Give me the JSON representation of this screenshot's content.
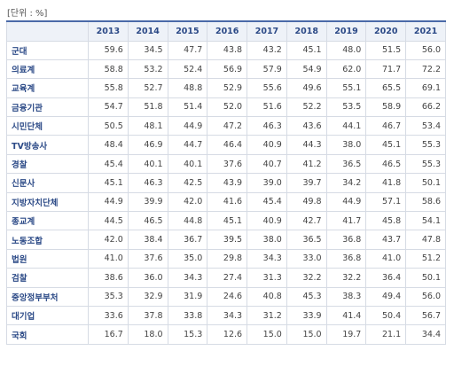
{
  "unit_label": "[단위 : %]",
  "years": [
    "2013",
    "2014",
    "2015",
    "2016",
    "2017",
    "2018",
    "2019",
    "2020",
    "2021"
  ],
  "rows": [
    {
      "name": "군대",
      "values": [
        "59.6",
        "34.5",
        "47.7",
        "43.8",
        "43.2",
        "45.1",
        "48.0",
        "51.5",
        "56.0"
      ]
    },
    {
      "name": "의료계",
      "values": [
        "58.8",
        "53.2",
        "52.4",
        "56.9",
        "57.9",
        "54.9",
        "62.0",
        "71.7",
        "72.2"
      ]
    },
    {
      "name": "교육계",
      "values": [
        "55.8",
        "52.7",
        "48.8",
        "52.9",
        "55.6",
        "49.6",
        "55.1",
        "65.5",
        "69.1"
      ]
    },
    {
      "name": "금융기관",
      "values": [
        "54.7",
        "51.8",
        "51.4",
        "52.0",
        "51.6",
        "52.2",
        "53.5",
        "58.9",
        "66.2"
      ]
    },
    {
      "name": "시민단체",
      "values": [
        "50.5",
        "48.1",
        "44.9",
        "47.2",
        "46.3",
        "43.6",
        "44.1",
        "46.7",
        "53.4"
      ]
    },
    {
      "name": "TV방송사",
      "values": [
        "48.4",
        "46.9",
        "44.7",
        "46.4",
        "40.9",
        "44.3",
        "38.0",
        "45.1",
        "55.3"
      ]
    },
    {
      "name": "경찰",
      "values": [
        "45.4",
        "40.1",
        "40.1",
        "37.6",
        "40.7",
        "41.2",
        "36.5",
        "46.5",
        "55.3"
      ]
    },
    {
      "name": "신문사",
      "values": [
        "45.1",
        "46.3",
        "42.5",
        "43.9",
        "39.0",
        "39.7",
        "34.2",
        "41.8",
        "50.1"
      ]
    },
    {
      "name": "지방자치단체",
      "values": [
        "44.9",
        "39.9",
        "42.0",
        "41.6",
        "45.4",
        "49.8",
        "44.9",
        "57.1",
        "58.6"
      ]
    },
    {
      "name": "종교계",
      "values": [
        "44.5",
        "46.5",
        "44.8",
        "45.1",
        "40.9",
        "42.7",
        "41.7",
        "45.8",
        "54.1"
      ]
    },
    {
      "name": "노동조합",
      "values": [
        "42.0",
        "38.4",
        "36.7",
        "39.5",
        "38.0",
        "36.5",
        "36.8",
        "43.7",
        "47.8"
      ]
    },
    {
      "name": "법원",
      "values": [
        "41.0",
        "37.6",
        "35.0",
        "29.8",
        "34.3",
        "33.0",
        "36.8",
        "41.0",
        "51.2"
      ]
    },
    {
      "name": "검찰",
      "values": [
        "38.6",
        "36.0",
        "34.3",
        "27.4",
        "31.3",
        "32.2",
        "32.2",
        "36.4",
        "50.1"
      ]
    },
    {
      "name": "중앙정부부처",
      "values": [
        "35.3",
        "32.9",
        "31.9",
        "24.6",
        "40.8",
        "45.3",
        "38.3",
        "49.4",
        "56.0"
      ]
    },
    {
      "name": "대기업",
      "values": [
        "33.6",
        "37.8",
        "33.8",
        "34.3",
        "31.2",
        "33.9",
        "41.4",
        "50.4",
        "56.7"
      ]
    },
    {
      "name": "국회",
      "values": [
        "16.7",
        "18.0",
        "15.3",
        "12.6",
        "15.0",
        "15.0",
        "19.7",
        "21.1",
        "34.4"
      ]
    }
  ]
}
